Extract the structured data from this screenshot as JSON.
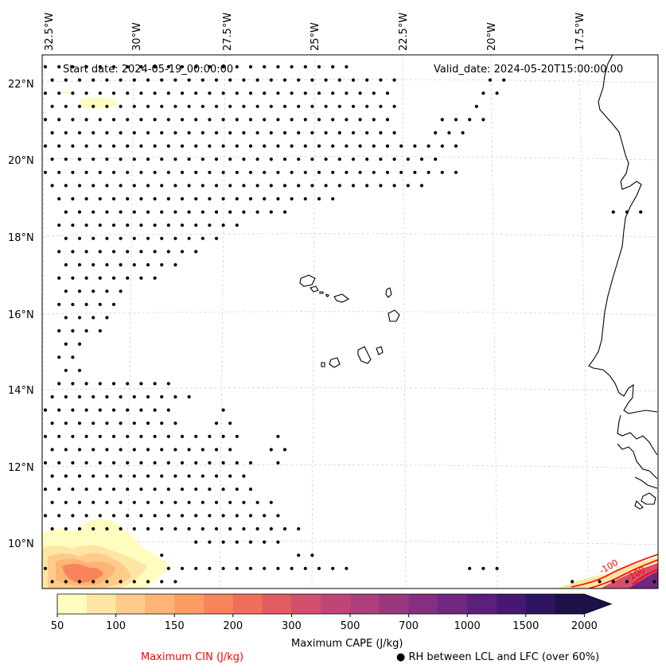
{
  "map": {
    "start_date": "Start date: 2024-05-19_00:00:00",
    "valid_date": "Valid_date: 2024-05-20T15:00:00.00",
    "lon_labels": [
      "32.5°W",
      "30°W",
      "27.5°W",
      "25°W",
      "22.5°W",
      "20°W",
      "17.5°W"
    ],
    "lat_labels": [
      "22°N",
      "20°N",
      "18°N",
      "16°N",
      "14°N",
      "12°N",
      "10°N"
    ],
    "cin_contour_labels": [
      "-100",
      "-100"
    ]
  },
  "colorbar": {
    "label": "Maximum CAPE (J/kg)",
    "ticks": [
      "50",
      "100",
      "150",
      "200",
      "300",
      "500",
      "700",
      "1000",
      "1500",
      "2000"
    ],
    "colors": [
      "#fffcc0",
      "#fee5a3",
      "#fecb8a",
      "#fdb474",
      "#fc9c63",
      "#f8845c",
      "#f06f5a",
      "#e35c62",
      "#d24f6d",
      "#bf4577",
      "#ac3f7c",
      "#98377e",
      "#842f80",
      "#70277f",
      "#5c1f7c",
      "#461873",
      "#2f1463",
      "#1d1147"
    ]
  },
  "legend": {
    "cin": "Maximum CIN (J/kg)",
    "rh": "RH between LCL and LFC (over 60%)",
    "cin_color": "#ff0000"
  }
}
